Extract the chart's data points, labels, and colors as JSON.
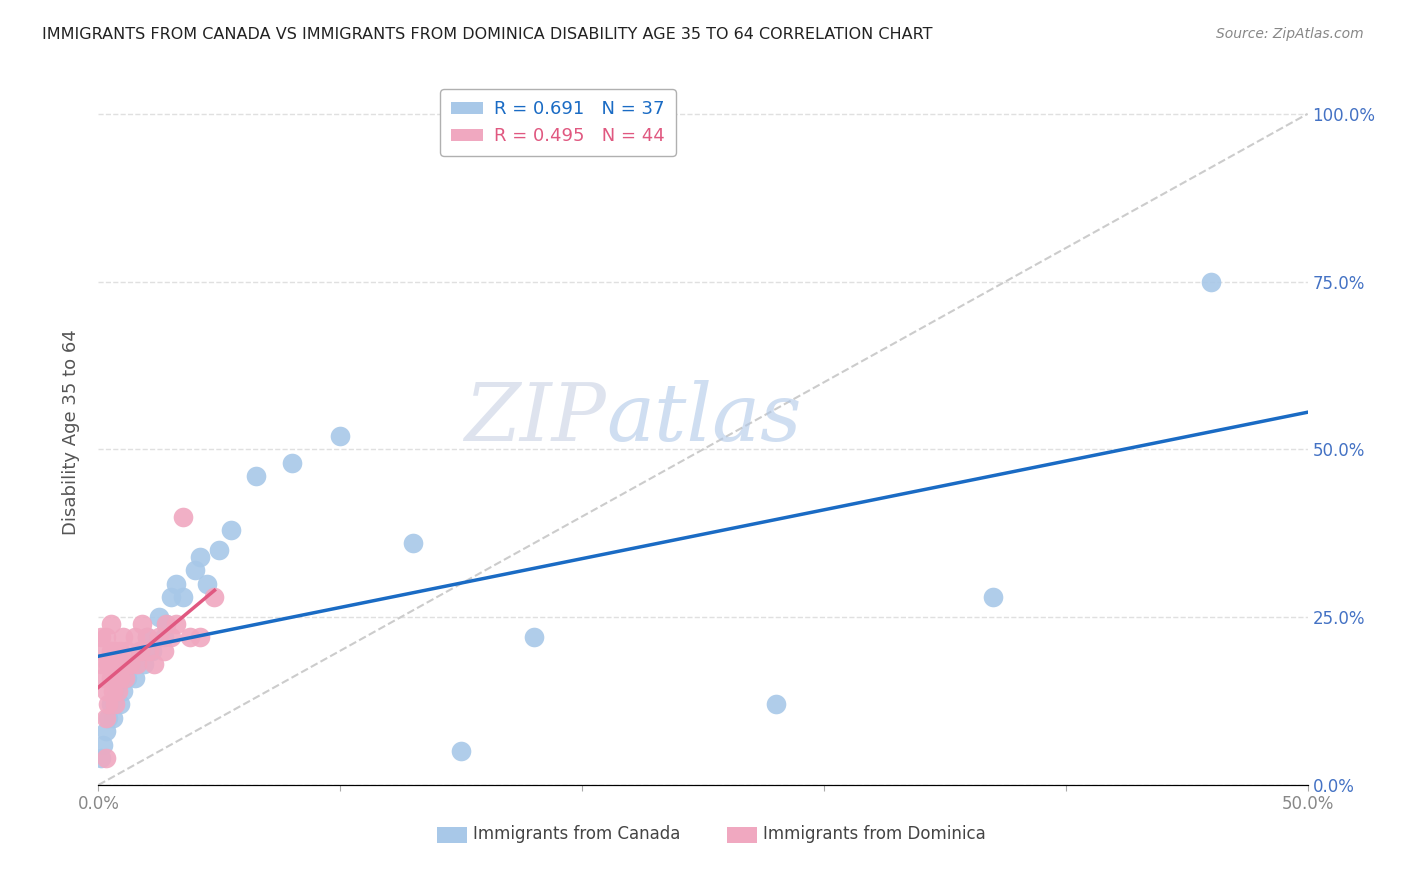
{
  "title": "IMMIGRANTS FROM CANADA VS IMMIGRANTS FROM DOMINICA DISABILITY AGE 35 TO 64 CORRELATION CHART",
  "source": "Source: ZipAtlas.com",
  "ylabel": "Disability Age 35 to 64",
  "xlim": [
    0.0,
    0.5
  ],
  "ylim": [
    0.0,
    1.05
  ],
  "xticks": [
    0.0,
    0.1,
    0.2,
    0.3,
    0.4,
    0.5
  ],
  "xticklabels": [
    "0.0%",
    "",
    "",
    "",
    "",
    "50.0%"
  ],
  "yticks": [
    0.0,
    0.25,
    0.5,
    0.75,
    1.0
  ],
  "yright_labels": [
    "0.0%",
    "25.0%",
    "50.0%",
    "75.0%",
    "100.0%"
  ],
  "canada_R": 0.691,
  "canada_N": 37,
  "dominica_R": 0.495,
  "dominica_N": 44,
  "canada_color": "#a8c8e8",
  "dominica_color": "#f0a8c0",
  "canada_line_color": "#1a6bc4",
  "dominica_line_color": "#e05880",
  "ref_line_color": "#cccccc",
  "legend_border_color": "#b0b0b0",
  "canada_scatter_x": [
    0.001,
    0.002,
    0.003,
    0.004,
    0.005,
    0.006,
    0.007,
    0.008,
    0.009,
    0.01,
    0.012,
    0.013,
    0.015,
    0.017,
    0.019,
    0.02,
    0.022,
    0.025,
    0.027,
    0.028,
    0.03,
    0.032,
    0.035,
    0.04,
    0.042,
    0.045,
    0.05,
    0.055,
    0.065,
    0.08,
    0.1,
    0.13,
    0.15,
    0.18,
    0.28,
    0.37,
    0.46
  ],
  "canada_scatter_y": [
    0.04,
    0.06,
    0.08,
    0.1,
    0.12,
    0.1,
    0.13,
    0.15,
    0.12,
    0.14,
    0.16,
    0.18,
    0.16,
    0.2,
    0.18,
    0.22,
    0.2,
    0.25,
    0.22,
    0.24,
    0.28,
    0.3,
    0.28,
    0.32,
    0.34,
    0.3,
    0.35,
    0.38,
    0.46,
    0.48,
    0.52,
    0.36,
    0.05,
    0.22,
    0.12,
    0.28,
    0.75
  ],
  "dominica_scatter_x": [
    0.001,
    0.001,
    0.002,
    0.002,
    0.003,
    0.003,
    0.003,
    0.004,
    0.004,
    0.005,
    0.005,
    0.005,
    0.006,
    0.006,
    0.007,
    0.007,
    0.007,
    0.008,
    0.008,
    0.009,
    0.009,
    0.01,
    0.01,
    0.011,
    0.012,
    0.013,
    0.015,
    0.016,
    0.017,
    0.018,
    0.02,
    0.021,
    0.023,
    0.025,
    0.027,
    0.028,
    0.03,
    0.032,
    0.035,
    0.038,
    0.042,
    0.048,
    0.003,
    0.005
  ],
  "dominica_scatter_y": [
    0.18,
    0.22,
    0.16,
    0.2,
    0.1,
    0.14,
    0.22,
    0.12,
    0.18,
    0.16,
    0.2,
    0.24,
    0.14,
    0.18,
    0.12,
    0.16,
    0.2,
    0.14,
    0.18,
    0.16,
    0.2,
    0.18,
    0.22,
    0.16,
    0.2,
    0.18,
    0.22,
    0.18,
    0.2,
    0.24,
    0.22,
    0.2,
    0.18,
    0.22,
    0.2,
    0.24,
    0.22,
    0.24,
    0.4,
    0.22,
    0.22,
    0.28,
    0.04,
    -0.04
  ],
  "watermark_zip": "ZIP",
  "watermark_atlas": "atlas",
  "background_color": "#ffffff",
  "grid_color": "#e0e0e0",
  "tick_color": "#888888",
  "right_tick_color": "#4472c4",
  "title_color": "#222222",
  "source_color": "#888888",
  "label_color": "#555555"
}
